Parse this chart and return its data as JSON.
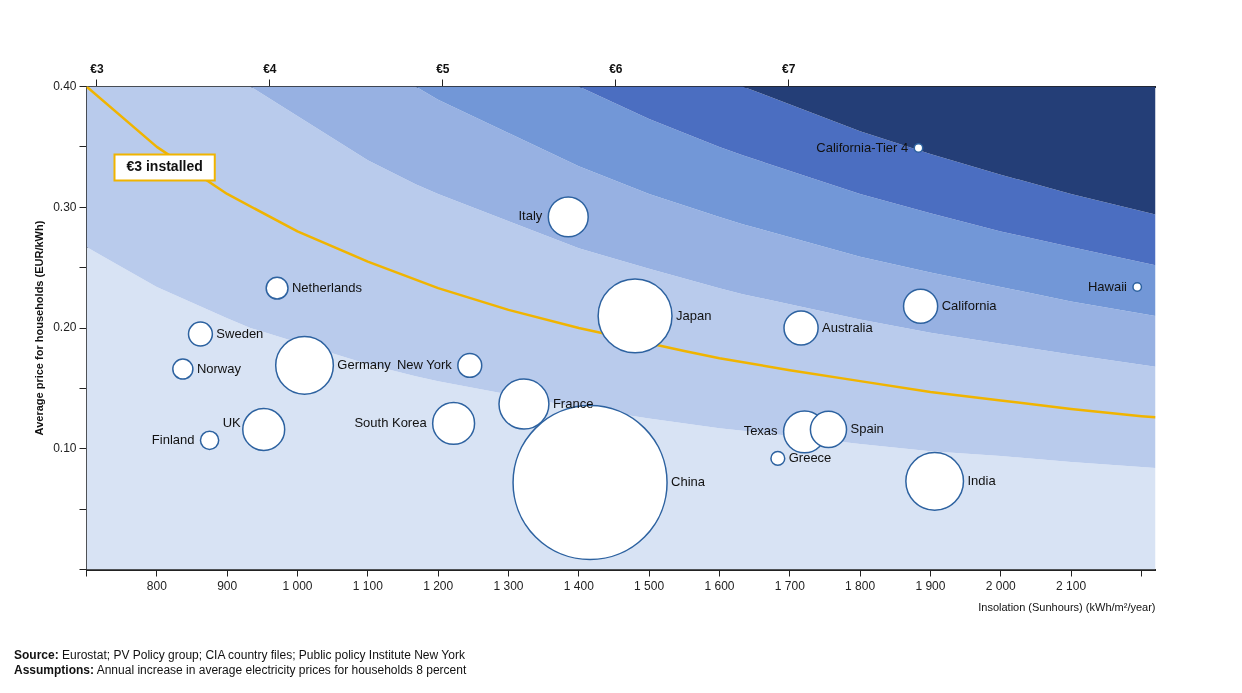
{
  "chart_data": {
    "type": "bubble",
    "ylabel": "Average price for households (EUR/kWh)",
    "xlabel": "Insolation (Sunhours) (kWh/m²/year)",
    "xlim": [
      700,
      2220
    ],
    "ylim": [
      0,
      0.4
    ],
    "xticks": [
      {
        "value": 700,
        "label": null
      },
      800,
      900,
      {
        "value": 1000,
        "label": "1 000"
      },
      {
        "value": 1100,
        "label": "1 100"
      },
      {
        "value": 1200,
        "label": "1 200"
      },
      {
        "value": 1300,
        "label": "1 300"
      },
      {
        "value": 1400,
        "label": "1 400"
      },
      {
        "value": 1500,
        "label": "1 500"
      },
      {
        "value": 1600,
        "label": "1 600"
      },
      {
        "value": 1700,
        "label": "1 700"
      },
      {
        "value": 1800,
        "label": "1 800"
      },
      {
        "value": 1900,
        "label": "1 900"
      },
      {
        "value": 2000,
        "label": "2 000"
      },
      {
        "value": 2100,
        "label": "2 100"
      },
      {
        "value": 2200,
        "label": null
      }
    ],
    "yticks": [
      {
        "value": 0,
        "label": null
      },
      {
        "value": 0.05,
        "label": null
      },
      {
        "value": 0.1,
        "label": "0.10"
      },
      {
        "value": 0.15,
        "label": null
      },
      {
        "value": 0.2,
        "label": "0.20"
      },
      {
        "value": 0.25,
        "label": null
      },
      {
        "value": 0.3,
        "label": "0.30"
      },
      {
        "value": 0.35,
        "label": null
      },
      {
        "value": 0.4,
        "label": "0.40"
      }
    ],
    "x2lim": [
      2.94,
      9.12
    ],
    "x2ticks": [
      {
        "value": 3,
        "label": "€3"
      },
      {
        "value": 4,
        "label": "€4"
      },
      {
        "value": 5,
        "label": "€5"
      },
      {
        "value": 6,
        "label": "€6"
      },
      {
        "value": 7,
        "label": "€7"
      }
    ],
    "grid": false,
    "legend": false,
    "stacked": true,
    "series": [
      {
        "type": "area",
        "color": "#d8e3f4",
        "x": [
          700,
          800,
          900,
          933,
          1100,
          1168,
          1200,
          1400,
          1500,
          1600,
          1633,
          1800,
          1900,
          2000,
          2100,
          2220
        ],
        "values": [
          0.267,
          0.234,
          0.208,
          0.2,
          0.17,
          0.16,
          0.156,
          0.134,
          0.125,
          0.117,
          0.115,
          0.104,
          0.098,
          0.094,
          0.089,
          0.084
        ]
      },
      {
        "type": "area",
        "color": "#b9cbec",
        "x": [
          700,
          800,
          900,
          933,
          1100,
          1168,
          1200,
          1400,
          1500,
          1600,
          1633,
          1800,
          1900,
          2000,
          2100,
          2220
        ],
        "values": [
          0.133,
          0.166,
          0.192,
          0.2,
          0.169,
          0.159,
          0.155,
          0.132,
          0.124,
          0.116,
          0.113,
          0.103,
          0.098,
          0.093,
          0.089,
          0.084
        ]
      },
      {
        "type": "area",
        "color": "#97b1e2",
        "x": [
          700,
          800,
          900,
          933,
          1100,
          1168,
          1200,
          1400,
          1500,
          1600,
          1633,
          1800,
          1900,
          2000,
          2100,
          2220
        ],
        "values": [
          0,
          0,
          0,
          0,
          0.061,
          0.081,
          0.078,
          0.068,
          0.062,
          0.059,
          0.058,
          0.052,
          0.05,
          0.047,
          0.044,
          0.042
        ]
      },
      {
        "type": "area",
        "color": "#7297d7",
        "x": [
          700,
          800,
          900,
          933,
          1100,
          1168,
          1200,
          1400,
          1500,
          1600,
          1633,
          1800,
          1900,
          2000,
          2100,
          2220
        ],
        "values": [
          0,
          0,
          0,
          0,
          0,
          0,
          0.011,
          0.066,
          0.062,
          0.058,
          0.057,
          0.052,
          0.049,
          0.046,
          0.045,
          0.042
        ]
      },
      {
        "type": "area",
        "color": "#4b6ec1",
        "x": [
          700,
          800,
          900,
          933,
          1100,
          1168,
          1200,
          1400,
          1500,
          1600,
          1633,
          1800,
          1900,
          2000,
          2100,
          2220
        ],
        "values": [
          0,
          0,
          0,
          0,
          0,
          0,
          0,
          0,
          0.027,
          0.05,
          0.057,
          0.052,
          0.049,
          0.047,
          0.044,
          0.042
        ]
      },
      {
        "type": "area",
        "color": "#243e77",
        "x": [
          700,
          800,
          900,
          933,
          1100,
          1168,
          1200,
          1400,
          1500,
          1600,
          1633,
          1800,
          1900,
          2000,
          2100,
          2220
        ],
        "values": [
          0,
          0,
          0,
          0,
          0,
          0,
          0,
          0,
          0,
          0,
          0,
          0.037,
          0.056,
          0.073,
          0.089,
          0.106
        ]
      },
      {
        "type": "line",
        "name": "€3 installed",
        "color": "#f0b400",
        "x": [
          700,
          800,
          900,
          1000,
          1100,
          1200,
          1300,
          1400,
          1550,
          1600,
          1700,
          1800,
          1900,
          2000,
          2100,
          2200,
          2220
        ],
        "values": [
          0.4,
          0.35,
          0.311,
          0.28,
          0.255,
          0.233,
          0.215,
          0.2,
          0.181,
          0.175,
          0.165,
          0.156,
          0.147,
          0.14,
          0.133,
          0.127,
          0.126
        ]
      },
      {
        "name": "California-Tier 4",
        "color": "#ffffff",
        "x": [
          1883
        ],
        "values": [
          0.349
        ],
        "sizes": [
          0.003
        ]
      },
      {
        "name": "Hawaii",
        "color": "#ffffff",
        "x": [
          2194
        ],
        "values": [
          0.234
        ],
        "sizes": [
          0.003
        ]
      },
      {
        "name": "Italy",
        "color": "#ffffff",
        "x": [
          1385
        ],
        "values": [
          0.292
        ],
        "sizes": [
          0.067
        ]
      },
      {
        "name": "Netherlands",
        "color": "#ffffff",
        "x": [
          971
        ],
        "values": [
          0.233
        ],
        "sizes": [
          0.02
        ]
      },
      {
        "name": "Japan",
        "color": "#ffffff",
        "x": [
          1480
        ],
        "values": [
          0.21
        ],
        "sizes": [
          0.23
        ]
      },
      {
        "name": "Australia",
        "color": "#ffffff",
        "x": [
          1716
        ],
        "values": [
          0.2
        ],
        "sizes": [
          0.049
        ]
      },
      {
        "name": "California",
        "color": "#ffffff",
        "x": [
          1886
        ],
        "values": [
          0.218
        ],
        "sizes": [
          0.049
        ]
      },
      {
        "name": "Sweden",
        "color": "#ffffff",
        "x": [
          862
        ],
        "values": [
          0.195
        ],
        "sizes": [
          0.024
        ]
      },
      {
        "name": "Norway",
        "color": "#ffffff",
        "x": [
          837
        ],
        "values": [
          0.166
        ],
        "sizes": [
          0.017
        ]
      },
      {
        "name": "Germany",
        "color": "#ffffff",
        "x": [
          1010
        ],
        "values": [
          0.169
        ],
        "sizes": [
          0.14
        ]
      },
      {
        "name": "New York",
        "color": "#ffffff",
        "x": [
          1245
        ],
        "values": [
          0.169
        ],
        "sizes": [
          0.024
        ]
      },
      {
        "name": "France",
        "color": "#ffffff",
        "x": [
          1322
        ],
        "values": [
          0.137
        ],
        "sizes": [
          0.105
        ]
      },
      {
        "name": "South Korea",
        "color": "#ffffff",
        "x": [
          1222
        ],
        "values": [
          0.121
        ],
        "sizes": [
          0.074
        ]
      },
      {
        "name": "UK",
        "color": "#ffffff",
        "x": [
          952
        ],
        "values": [
          0.116
        ],
        "sizes": [
          0.074
        ]
      },
      {
        "name": "Finland",
        "color": "#ffffff",
        "x": [
          875
        ],
        "values": [
          0.107
        ],
        "sizes": [
          0.014
        ]
      },
      {
        "name": "Texas",
        "color": "#ffffff",
        "x": [
          1721
        ],
        "values": [
          0.114
        ],
        "sizes": [
          0.074
        ]
      },
      {
        "name": "Spain",
        "color": "#ffffff",
        "x": [
          1755
        ],
        "values": [
          0.116
        ],
        "sizes": [
          0.055
        ]
      },
      {
        "name": "Greece",
        "color": "#ffffff",
        "x": [
          1683
        ],
        "values": [
          0.092
        ],
        "sizes": [
          0.008
        ]
      },
      {
        "name": "China",
        "color": "#ffffff",
        "x": [
          1416
        ],
        "values": [
          0.072
        ],
        "sizes": [
          1
        ]
      },
      {
        "name": "India",
        "color": "#ffffff",
        "x": [
          1906
        ],
        "values": [
          0.073
        ],
        "sizes": [
          0.14
        ]
      }
    ],
    "annotations": [
      "Source: Eurostat; PV Policy group; CIA country files; Public policy Institute New York",
      "Assumptions: Annual increase in average electricity prices for households 8 percent"
    ]
  }
}
